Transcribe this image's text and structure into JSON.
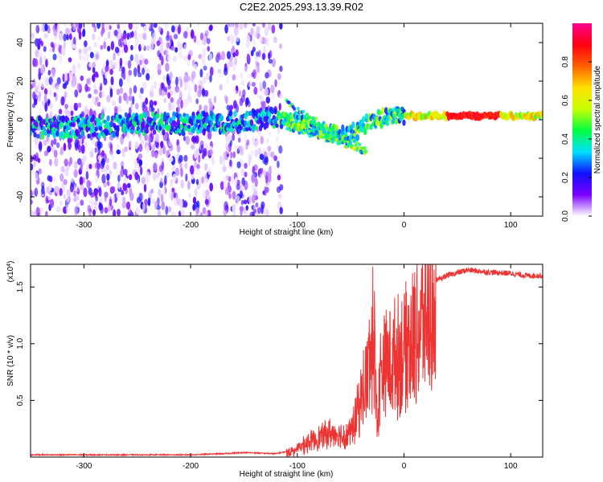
{
  "title": "C2E2.2025.293.13.39.R02",
  "chart_data": [
    {
      "type": "heatmap",
      "title": "C2E2.2025.293.13.39.R02",
      "xlabel": "Height of straight line (km)",
      "ylabel": "Frequency (Hz)",
      "xlim": [
        -350,
        130
      ],
      "ylim": [
        -50,
        50
      ],
      "xticks": [
        -300,
        -200,
        -100,
        0,
        100
      ],
      "xtick_labels": [
        "-300",
        "-200",
        "-100",
        "0",
        "100"
      ],
      "yticks": [
        -40,
        -20,
        0,
        20,
        40
      ],
      "ytick_labels": [
        "-40",
        "-20",
        "0",
        "20",
        "40"
      ],
      "colorbar": {
        "label": "Normalized spectral amplitude",
        "range": [
          0,
          1
        ],
        "ticks": [
          0.0,
          0.2,
          0.4,
          0.6,
          0.8
        ],
        "tick_labels": [
          "0.0",
          "0.2",
          "0.4",
          "0.6",
          "0.8"
        ],
        "colors": [
          "#ffffff",
          "#7a00ff",
          "#1010ff",
          "#00e0ff",
          "#00ff40",
          "#c8ff00",
          "#ffe000",
          "#ff6000",
          "#ff0010",
          "#ff0090"
        ]
      },
      "main_signal": {
        "note": "Narrow band near 0 Hz: noisy below -120 km, bending downward between -100 and -40 km, steady strong line near +2 Hz above 0 km",
        "ridge_points": [
          {
            "x": -350,
            "y": -4
          },
          {
            "x": -300,
            "y": -4
          },
          {
            "x": -250,
            "y": -2
          },
          {
            "x": -200,
            "y": -2
          },
          {
            "x": -150,
            "y": -1
          },
          {
            "x": -120,
            "y": 1
          },
          {
            "x": -100,
            "y": -2
          },
          {
            "x": -80,
            "y": -6
          },
          {
            "x": -60,
            "y": -8
          },
          {
            "x": -45,
            "y": -6
          },
          {
            "x": -35,
            "y": -2
          },
          {
            "x": -20,
            "y": 1
          },
          {
            "x": 0,
            "y": 2
          },
          {
            "x": 50,
            "y": 2
          },
          {
            "x": 100,
            "y": 2
          },
          {
            "x": 130,
            "y": 2
          }
        ]
      }
    },
    {
      "type": "line",
      "xlabel": "Height of straight line (km)",
      "ylabel": "SNR (10 * v/v)",
      "y_scale_label": "(x10",
      "y_scale_exponent": "4",
      "y_scale_close": ")",
      "xlim": [
        -350,
        130
      ],
      "ylim": [
        0,
        1.7
      ],
      "xticks": [
        -300,
        -200,
        -100,
        0,
        100
      ],
      "xtick_labels": [
        "-300",
        "-200",
        "-100",
        "0",
        "100"
      ],
      "yticks": [
        0.5,
        1.0,
        1.5
      ],
      "ytick_labels": [
        "0.5",
        "1.0",
        "1.5"
      ],
      "series": [
        {
          "name": "SNR",
          "color": "#ee3333",
          "points": [
            [
              -350,
              0.02
            ],
            [
              -300,
              0.02
            ],
            [
              -250,
              0.02
            ],
            [
              -200,
              0.02
            ],
            [
              -170,
              0.03
            ],
            [
              -150,
              0.04
            ],
            [
              -120,
              0.03
            ],
            [
              -110,
              0.05
            ],
            [
              -100,
              0.08
            ],
            [
              -90,
              0.15
            ],
            [
              -80,
              0.2
            ],
            [
              -70,
              0.25
            ],
            [
              -60,
              0.22
            ],
            [
              -50,
              0.25
            ],
            [
              -45,
              0.4
            ],
            [
              -40,
              0.6
            ],
            [
              -35,
              0.8
            ],
            [
              -32,
              1.0
            ],
            [
              -28,
              1.2
            ],
            [
              -25,
              0.3
            ],
            [
              -22,
              0.9
            ],
            [
              -18,
              0.95
            ],
            [
              -12,
              1.0
            ],
            [
              -5,
              1.05
            ],
            [
              0,
              1.1
            ],
            [
              10,
              1.25
            ],
            [
              20,
              1.45
            ],
            [
              30,
              1.55
            ],
            [
              40,
              1.6
            ],
            [
              60,
              1.65
            ],
            [
              80,
              1.63
            ],
            [
              100,
              1.62
            ],
            [
              115,
              1.6
            ],
            [
              130,
              1.6
            ]
          ]
        }
      ]
    }
  ]
}
